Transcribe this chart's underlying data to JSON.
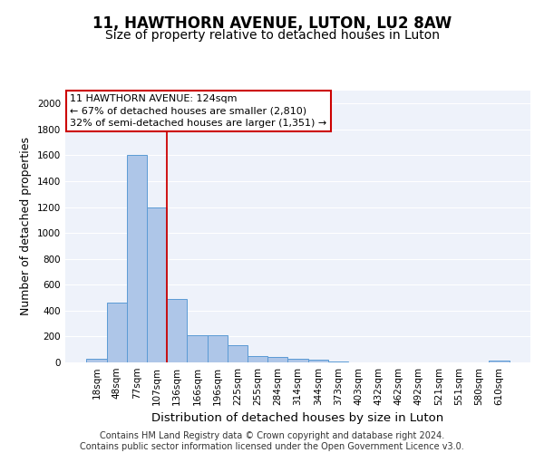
{
  "title": "11, HAWTHORN AVENUE, LUTON, LU2 8AW",
  "subtitle": "Size of property relative to detached houses in Luton",
  "xlabel": "Distribution of detached houses by size in Luton",
  "ylabel": "Number of detached properties",
  "categories": [
    "18sqm",
    "48sqm",
    "77sqm",
    "107sqm",
    "136sqm",
    "166sqm",
    "196sqm",
    "225sqm",
    "255sqm",
    "284sqm",
    "314sqm",
    "344sqm",
    "373sqm",
    "403sqm",
    "432sqm",
    "462sqm",
    "492sqm",
    "521sqm",
    "551sqm",
    "580sqm",
    "610sqm"
  ],
  "values": [
    30,
    460,
    1600,
    1200,
    490,
    210,
    210,
    130,
    50,
    40,
    25,
    20,
    10,
    0,
    0,
    0,
    0,
    0,
    0,
    0,
    15
  ],
  "bar_color": "#aec6e8",
  "bar_edge_color": "#5b9bd5",
  "property_line_color": "#cc0000",
  "annotation_text_line1": "11 HAWTHORN AVENUE: 124sqm",
  "annotation_text_line2": "← 67% of detached houses are smaller (2,810)",
  "annotation_text_line3": "32% of semi-detached houses are larger (1,351) →",
  "annotation_box_color": "#ffffff",
  "annotation_box_edge_color": "#cc0000",
  "ylim": [
    0,
    2100
  ],
  "yticks": [
    0,
    200,
    400,
    600,
    800,
    1000,
    1200,
    1400,
    1600,
    1800,
    2000
  ],
  "footer_line1": "Contains HM Land Registry data © Crown copyright and database right 2024.",
  "footer_line2": "Contains public sector information licensed under the Open Government Licence v3.0.",
  "title_fontsize": 12,
  "subtitle_fontsize": 10,
  "axis_label_fontsize": 9,
  "tick_fontsize": 7.5,
  "annotation_fontsize": 8,
  "footer_fontsize": 7,
  "bg_color": "#eef2fa",
  "grid_color": "#ffffff"
}
